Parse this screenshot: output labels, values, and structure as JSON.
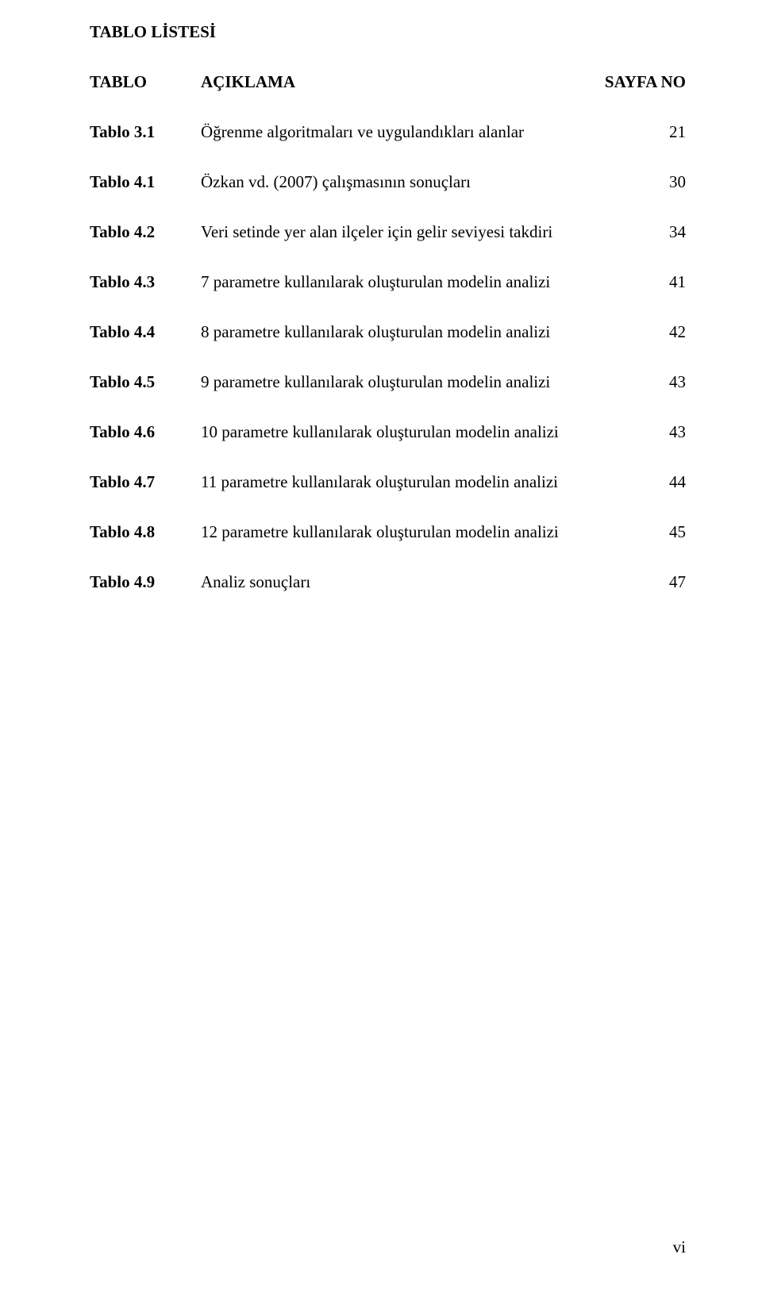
{
  "heading": "TABLO LİSTESİ",
  "header": {
    "col1": "TABLO",
    "col2": "AÇIKLAMA",
    "col3": "SAYFA NO"
  },
  "rows": [
    {
      "label": "Tablo 3.1",
      "desc": "Öğrenme algoritmaları ve uygulandıkları alanlar",
      "page": "21"
    },
    {
      "label": "Tablo 4.1",
      "desc": "Özkan vd. (2007) çalışmasının sonuçları",
      "page": "30"
    },
    {
      "label": "Tablo 4.2",
      "desc": "Veri setinde yer alan ilçeler için gelir seviyesi takdiri",
      "page": "34"
    },
    {
      "label": "Tablo 4.3",
      "desc": "7 parametre kullanılarak oluşturulan modelin analizi",
      "page": "41"
    },
    {
      "label": "Tablo 4.4",
      "desc": "8 parametre kullanılarak oluşturulan modelin analizi",
      "page": "42"
    },
    {
      "label": "Tablo 4.5",
      "desc": "9 parametre kullanılarak oluşturulan modelin analizi",
      "page": "43"
    },
    {
      "label": "Tablo 4.6",
      "desc": "10 parametre kullanılarak oluşturulan modelin analizi",
      "page": "43"
    },
    {
      "label": "Tablo 4.7",
      "desc": "11 parametre kullanılarak oluşturulan modelin analizi",
      "page": "44"
    },
    {
      "label": "Tablo 4.8",
      "desc": "12 parametre kullanılarak oluşturulan modelin analizi",
      "page": "45"
    },
    {
      "label": "Tablo 4.9",
      "desc": "Analiz sonuçları",
      "page": "47"
    }
  ],
  "pageNumber": "vi"
}
